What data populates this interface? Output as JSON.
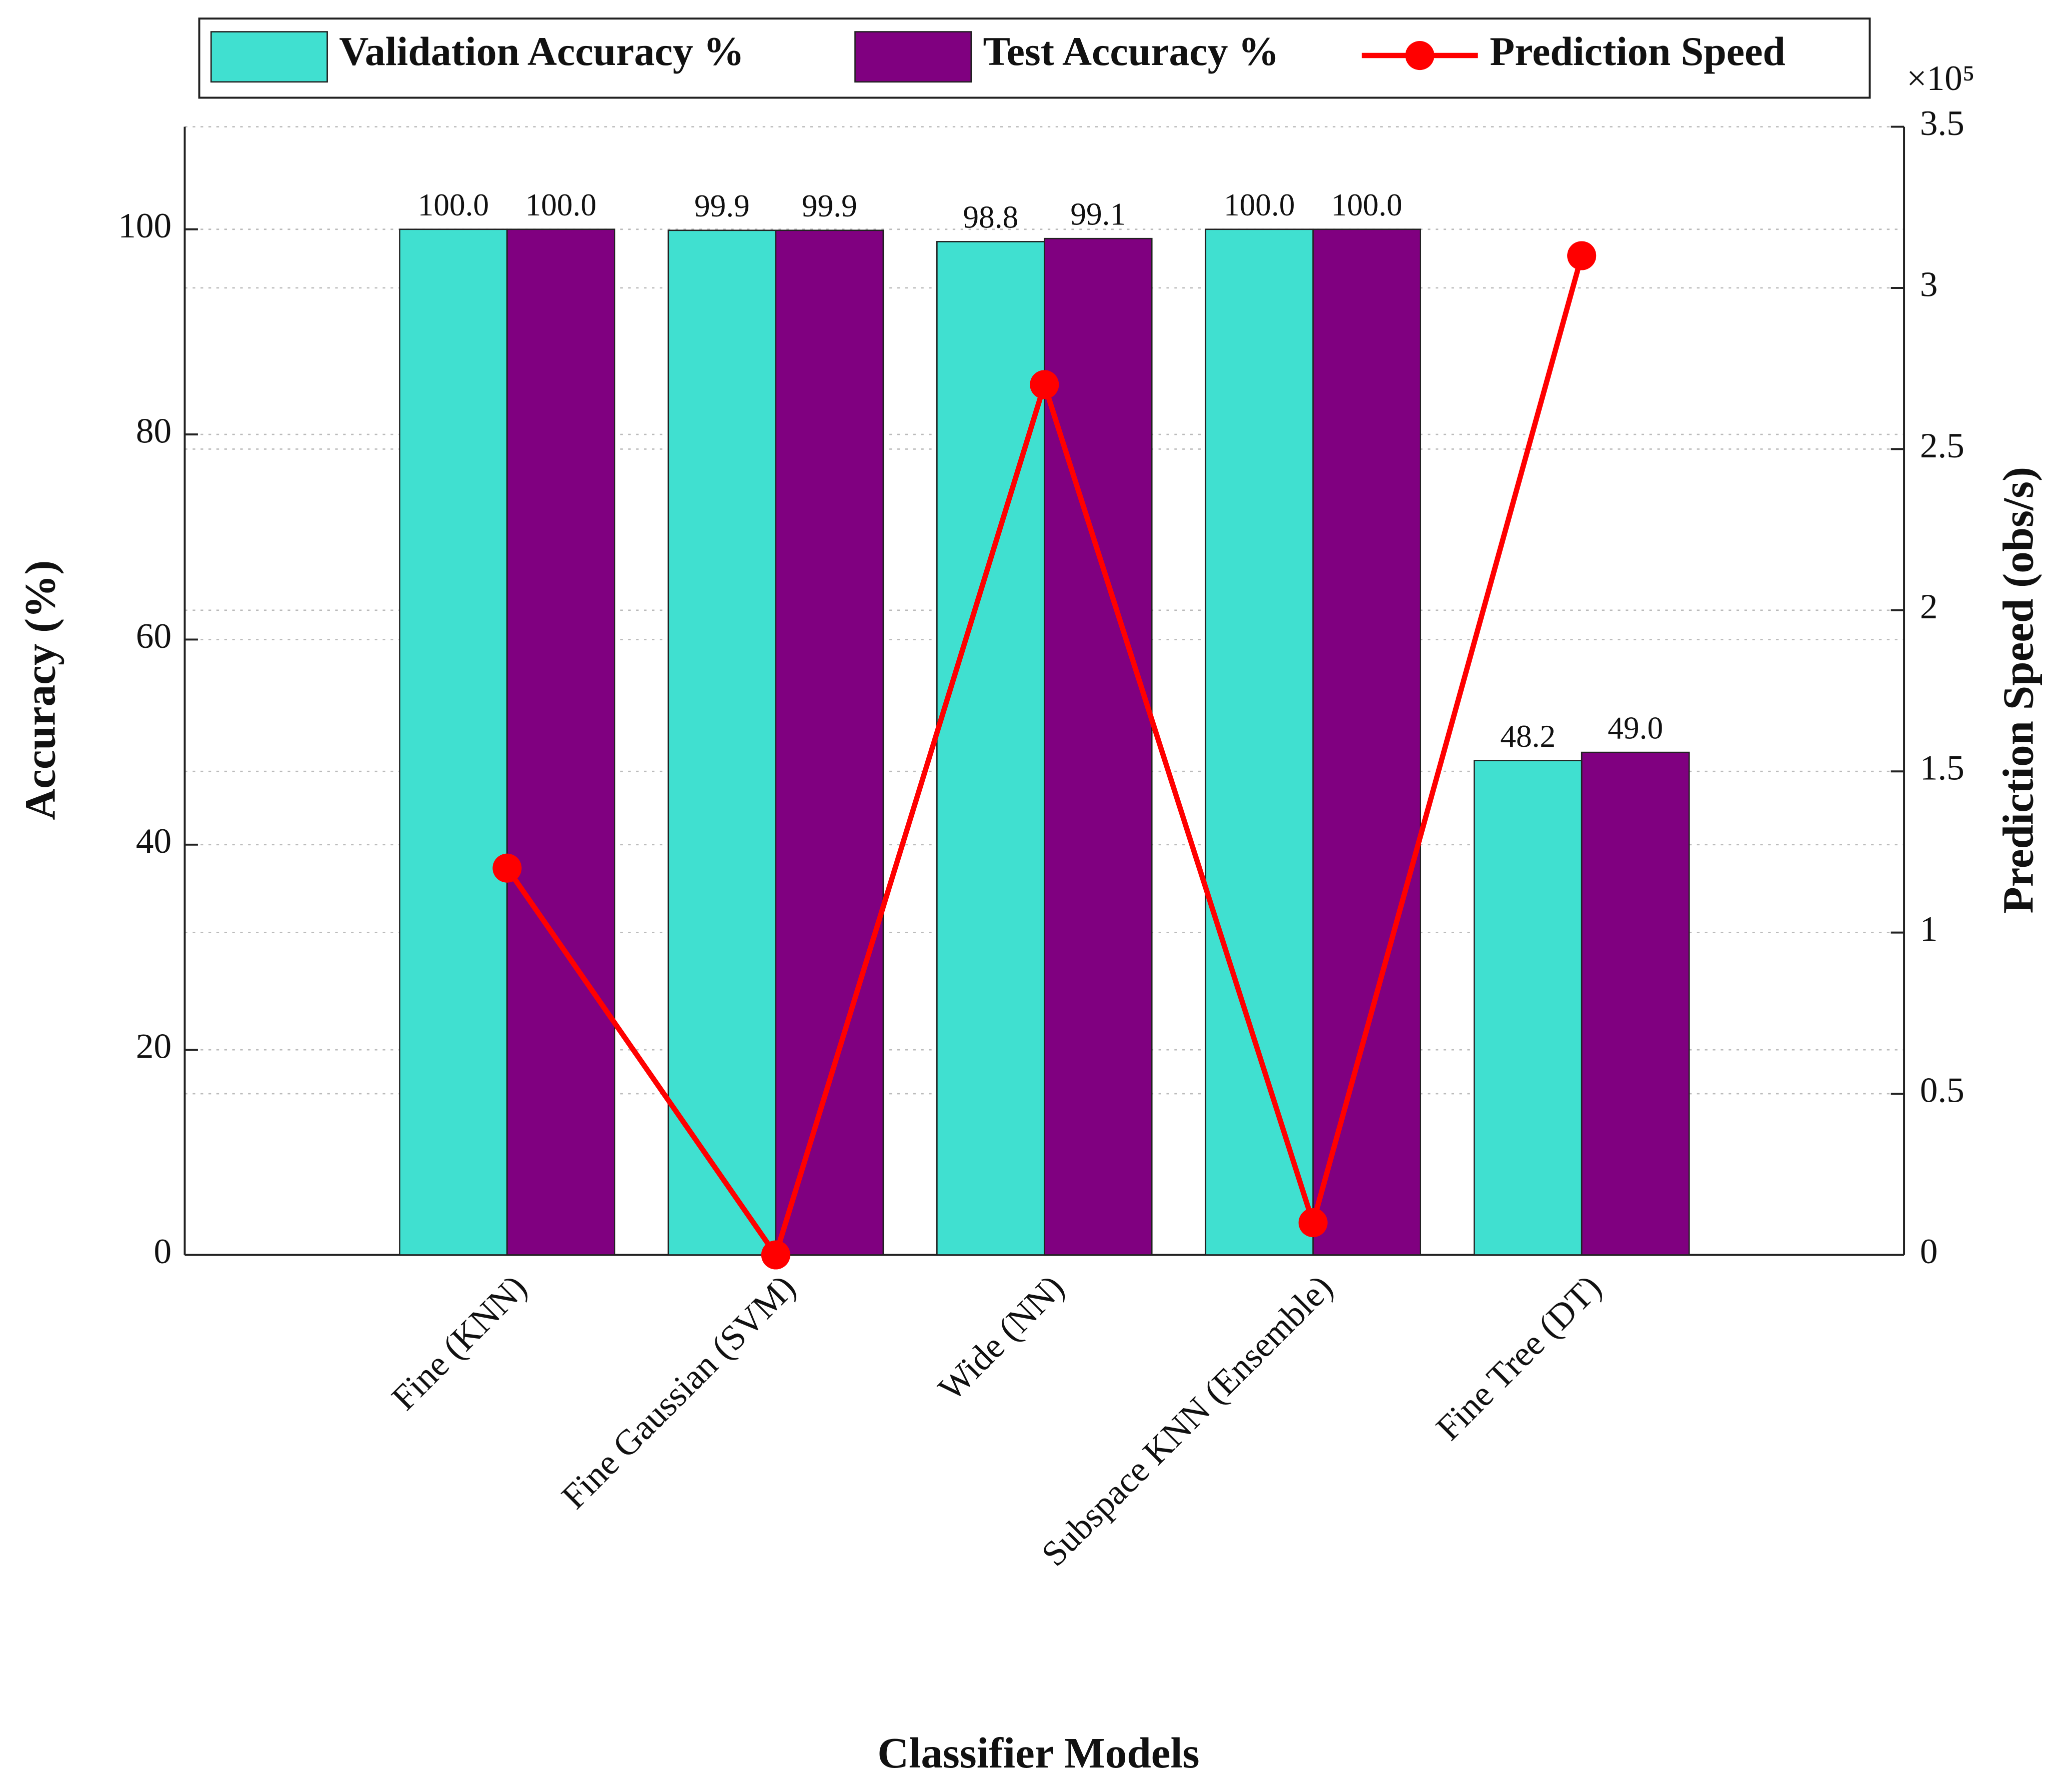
{
  "chart_data": {
    "type": "bar",
    "categories": [
      "Fine (KNN)",
      "Fine Gaussian (SVM)",
      "Wide (NN)",
      "Subspace KNN (Ensemble)",
      "Fine Tree (DT)"
    ],
    "series": [
      {
        "name": "Validation Accuracy %",
        "color": "#40e0d0",
        "values": [
          100.0,
          99.9,
          98.8,
          100.0,
          48.2
        ],
        "value_labels": [
          "100.0",
          "99.9",
          "98.8",
          "100.0",
          "48.2"
        ]
      },
      {
        "name": "Test Accuracy %",
        "color": "#800080",
        "values": [
          100.0,
          99.9,
          99.1,
          100.0,
          49.0
        ],
        "value_labels": [
          "100.0",
          "99.9",
          "99.1",
          "100.0",
          "49.0"
        ]
      },
      {
        "name": "Prediction Speed",
        "color": "#ff0000",
        "type": "line",
        "axis": "y2",
        "values": [
          120000,
          0,
          270000,
          10000,
          310000
        ]
      }
    ],
    "x_label": "Classifier Models",
    "y_label": "Accuracy (%)",
    "y2_label": "Prediction Speed (obs/s)",
    "y2_scale_label": "×10⁵",
    "ylim": [
      0,
      110
    ],
    "yticks": [
      0,
      20,
      40,
      60,
      80,
      100
    ],
    "y2lim": [
      0,
      350000
    ],
    "y2ticks": [
      0,
      {
        "value": 50000,
        "label": "0.5"
      },
      {
        "value": 100000,
        "label": "1"
      },
      {
        "value": 150000,
        "label": "1.5"
      },
      {
        "value": 200000,
        "label": "2"
      },
      {
        "value": 250000,
        "label": "2.5"
      },
      {
        "value": 300000,
        "label": "3"
      },
      {
        "value": 350000,
        "label": "3.5"
      }
    ],
    "grid": true,
    "legend": "top"
  }
}
